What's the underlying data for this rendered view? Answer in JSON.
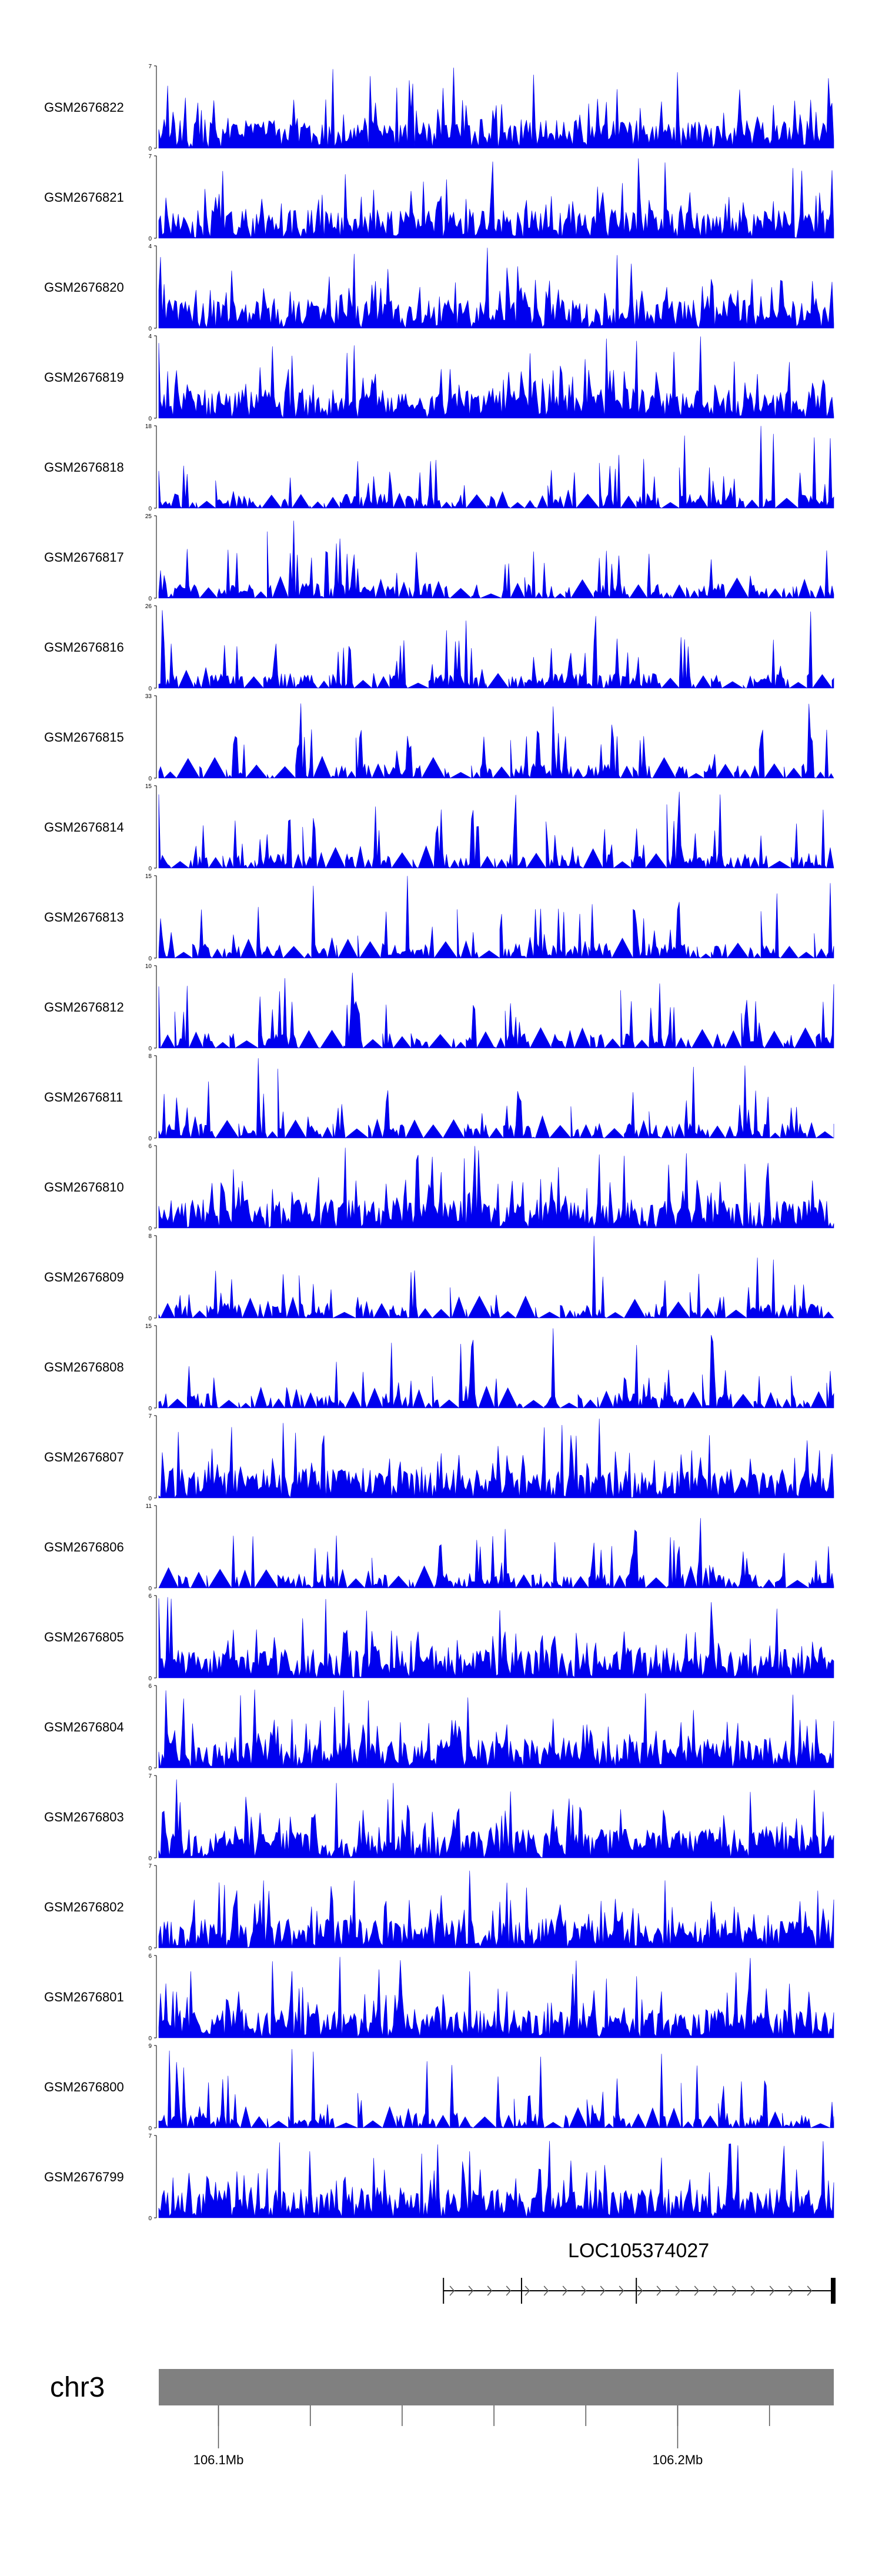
{
  "chart_data": {
    "type": "area",
    "x_unit": "bp",
    "xlim": [
      106087000,
      106234000
    ],
    "bar_color": "#0000ee",
    "tracks": [
      {
        "name": "GSM2676822",
        "ymax": 7,
        "ylim": [
          0,
          7
        ],
        "seed": 822
      },
      {
        "name": "GSM2676821",
        "ymax": 7,
        "ylim": [
          0,
          7
        ],
        "seed": 821
      },
      {
        "name": "GSM2676820",
        "ymax": 4,
        "ylim": [
          0,
          4
        ],
        "seed": 820
      },
      {
        "name": "GSM2676819",
        "ymax": 4,
        "ylim": [
          0,
          4
        ],
        "seed": 819
      },
      {
        "name": "GSM2676818",
        "ymax": 18,
        "ylim": [
          0,
          18
        ],
        "seed": 818
      },
      {
        "name": "GSM2676817",
        "ymax": 25,
        "ylim": [
          0,
          25
        ],
        "seed": 817
      },
      {
        "name": "GSM2676816",
        "ymax": 26,
        "ylim": [
          0,
          26
        ],
        "seed": 816
      },
      {
        "name": "GSM2676815",
        "ymax": 33,
        "ylim": [
          0,
          33
        ],
        "seed": 815
      },
      {
        "name": "GSM2676814",
        "ymax": 15,
        "ylim": [
          0,
          15
        ],
        "seed": 814
      },
      {
        "name": "GSM2676813",
        "ymax": 15,
        "ylim": [
          0,
          15
        ],
        "seed": 813
      },
      {
        "name": "GSM2676812",
        "ymax": 10,
        "ylim": [
          0,
          10
        ],
        "seed": 812
      },
      {
        "name": "GSM2676811",
        "ymax": 8,
        "ylim": [
          0,
          8
        ],
        "seed": 811
      },
      {
        "name": "GSM2676810",
        "ymax": 6,
        "ylim": [
          0,
          6
        ],
        "seed": 810
      },
      {
        "name": "GSM2676809",
        "ymax": 8,
        "ylim": [
          0,
          8
        ],
        "seed": 809
      },
      {
        "name": "GSM2676808",
        "ymax": 15,
        "ylim": [
          0,
          15
        ],
        "seed": 808
      },
      {
        "name": "GSM2676807",
        "ymax": 7,
        "ylim": [
          0,
          7
        ],
        "seed": 807
      },
      {
        "name": "GSM2676806",
        "ymax": 11,
        "ylim": [
          0,
          11
        ],
        "seed": 806
      },
      {
        "name": "GSM2676805",
        "ymax": 6,
        "ylim": [
          0,
          6
        ],
        "seed": 805
      },
      {
        "name": "GSM2676804",
        "ymax": 6,
        "ylim": [
          0,
          6
        ],
        "seed": 804
      },
      {
        "name": "GSM2676803",
        "ymax": 7,
        "ylim": [
          0,
          7
        ],
        "seed": 803
      },
      {
        "name": "GSM2676802",
        "ymax": 7,
        "ylim": [
          0,
          7
        ],
        "seed": 802
      },
      {
        "name": "GSM2676801",
        "ymax": 6,
        "ylim": [
          0,
          6
        ],
        "seed": 801
      },
      {
        "name": "GSM2676800",
        "ymax": 9,
        "ylim": [
          0,
          9
        ],
        "seed": 800
      },
      {
        "name": "GSM2676799",
        "ymax": 7,
        "ylim": [
          0,
          7
        ],
        "seed": 799
      }
    ],
    "gene": {
      "name": "LOC105374027",
      "strand": "+",
      "start": 106149000,
      "end": 106234000,
      "exon_ends": [
        106166000,
        106191000,
        106234000
      ]
    },
    "chromosome": {
      "name": "chr3",
      "color": "#808080"
    },
    "axis": {
      "tick_labels": [
        {
          "pos": 106100000,
          "label": "106.1Mb"
        },
        {
          "pos": 106200000,
          "label": "106.2Mb"
        }
      ],
      "minor_ticks": [
        106100000,
        106120000,
        106140000,
        106160000,
        106180000,
        106200000,
        106220000
      ]
    },
    "grid": false
  }
}
